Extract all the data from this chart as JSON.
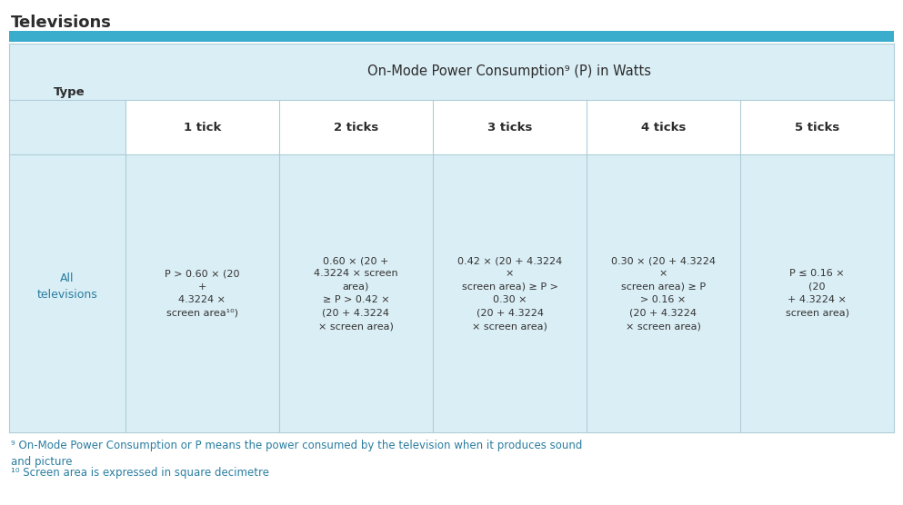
{
  "title": "Televisions",
  "title_color": "#2c2c2c",
  "title_fontsize": 13,
  "header_bar_color": "#3aaccc",
  "table_bg_light": "#daeef5",
  "table_bg_white": "#ffffff",
  "col_header_text": "On-Mode Power Consumption⁹ (P) in Watts",
  "type_label": "Type",
  "tick_labels": [
    "1 tick",
    "2 ticks",
    "3 ticks",
    "4 ticks",
    "5 ticks"
  ],
  "row_label": "All\ntelevisions",
  "row_label_color": "#2a7da0",
  "cell_text_color": "#333333",
  "cell_data": [
    "P > 0.60 × (20\n+\n4.3224 ×\nscreen area¹⁰)",
    "0.60 × (20 +\n4.3224 × screen\narea)\n≥ P > 0.42 ×\n(20 + 4.3224\n× screen area)",
    "0.42 × (20 + 4.3224\n×\nscreen area) ≥ P >\n0.30 ×\n(20 + 4.3224\n× screen area)",
    "0.30 × (20 + 4.3224\n×\nscreen area) ≥ P\n> 0.16 ×\n(20 + 4.3224\n× screen area)",
    "P ≤ 0.16 ×\n(20\n+ 4.3224 ×\nscreen area)"
  ],
  "footnote9": "⁹ On-Mode Power Consumption or P means the power consumed by the television when it produces sound\nand picture",
  "footnote10": "¹⁰ Screen area is expressed in square decimetre",
  "footnote_color": "#2a7da0",
  "footnote_fontsize": 8.5
}
